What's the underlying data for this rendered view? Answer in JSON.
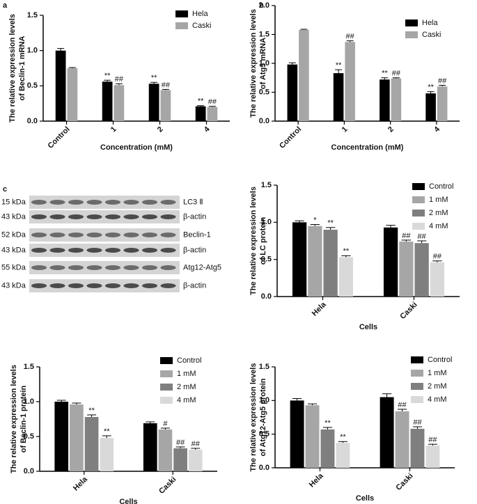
{
  "chart_data": [
    {
      "type": "bar",
      "panel_label": "a",
      "ylabel": [
        "The relative expression levels",
        "of Beclin-1 mRNA"
      ],
      "xlabel": "Concentration (mM)",
      "categories": [
        "Control",
        "1",
        "2",
        "4"
      ],
      "ylim": [
        0,
        1.5
      ],
      "yticks": [
        {
          "value": 0,
          "label": "0.0"
        },
        {
          "value": 0.5,
          "label": "0.5"
        },
        {
          "value": 1,
          "label": "1.0"
        },
        {
          "value": 1.5,
          "label": "1.5"
        }
      ],
      "legend": "upper right",
      "series": [
        {
          "name": "Hela",
          "color": "#000000",
          "values": [
            1.0,
            0.56,
            0.53,
            0.21
          ],
          "errors": [
            0.03,
            0.02,
            0.02,
            0.01
          ],
          "annotations": [
            null,
            "**",
            "**",
            "**"
          ]
        },
        {
          "name": "Caski",
          "color": "#a6a6a6",
          "values": [
            0.75,
            0.51,
            0.44,
            0.2
          ],
          "errors": [
            0.01,
            0.02,
            0.01,
            0.01
          ],
          "annotations": [
            null,
            "##",
            "##",
            "##"
          ]
        }
      ]
    },
    {
      "type": "bar",
      "panel_label": "b",
      "ylabel": [
        "The relative expression levels",
        "of Atg5 mRNA"
      ],
      "xlabel": "Concentration (mM)",
      "categories": [
        "Control",
        "1",
        "2",
        "4"
      ],
      "ylim": [
        0,
        2
      ],
      "yticks": [
        {
          "value": 0,
          "label": "0.0"
        },
        {
          "value": 0.5,
          "label": "0.5"
        },
        {
          "value": 1,
          "label": "1.0"
        },
        {
          "value": 1.5,
          "label": "1.5"
        },
        {
          "value": 2,
          "label": "2.0"
        }
      ],
      "legend": "upper right",
      "series": [
        {
          "name": "Hela",
          "color": "#000000",
          "values": [
            0.98,
            0.83,
            0.72,
            0.48
          ],
          "errors": [
            0.03,
            0.06,
            0.03,
            0.03
          ],
          "annotations": [
            null,
            "**",
            "**",
            "**"
          ]
        },
        {
          "name": "Caski",
          "color": "#a6a6a6",
          "values": [
            1.58,
            1.37,
            0.74,
            0.6
          ],
          "errors": [
            0.01,
            0.02,
            0.01,
            0.02
          ],
          "annotations": [
            null,
            "##",
            "##",
            "##"
          ]
        }
      ]
    },
    {
      "type": "bar",
      "ylabel": [
        "The relative expression levels",
        "of LC protein"
      ],
      "xlabel": "Cells",
      "categories": [
        "Hela",
        "Caski"
      ],
      "ylim": [
        0,
        1.5
      ],
      "yticks": [
        {
          "value": 0,
          "label": "0.0"
        },
        {
          "value": 0.5,
          "label": "0.5"
        },
        {
          "value": 1,
          "label": "1.0"
        },
        {
          "value": 1.5,
          "label": "1.5"
        }
      ],
      "legend": "upper right",
      "series": [
        {
          "name": "Control",
          "color": "#000000",
          "values": [
            1.0,
            0.93
          ],
          "errors": [
            0.02,
            0.03
          ],
          "annotations": [
            null,
            null
          ]
        },
        {
          "name": "1 mM",
          "color": "#a6a6a6",
          "values": [
            0.95,
            0.74
          ],
          "errors": [
            0.02,
            0.02
          ],
          "annotations": [
            "*",
            "##"
          ]
        },
        {
          "name": "2 mM",
          "color": "#7f7f7f",
          "values": [
            0.9,
            0.72
          ],
          "errors": [
            0.03,
            0.03
          ],
          "annotations": [
            "**",
            "##"
          ]
        },
        {
          "name": "4 mM",
          "color": "#d9d9d9",
          "values": [
            0.53,
            0.46
          ],
          "errors": [
            0.02,
            0.02
          ],
          "annotations": [
            "**",
            "##"
          ]
        }
      ]
    },
    {
      "type": "bar",
      "ylabel": [
        "The relative expression levels",
        "of Beclin-1 protein"
      ],
      "xlabel": "Cells",
      "categories": [
        "Hela",
        "Caski"
      ],
      "ylim": [
        0,
        1.5
      ],
      "yticks": [
        {
          "value": 0,
          "label": "0.0"
        },
        {
          "value": 0.5,
          "label": "0.5"
        },
        {
          "value": 1,
          "label": "1.0"
        },
        {
          "value": 1.5,
          "label": "1.5"
        }
      ],
      "legend": "upper right",
      "series": [
        {
          "name": "Control",
          "color": "#000000",
          "values": [
            1.0,
            0.69
          ],
          "errors": [
            0.02,
            0.02
          ],
          "annotations": [
            null,
            null
          ]
        },
        {
          "name": "1 mM",
          "color": "#a6a6a6",
          "values": [
            0.96,
            0.6
          ],
          "errors": [
            0.02,
            0.02
          ],
          "annotations": [
            null,
            "#"
          ]
        },
        {
          "name": "2 mM",
          "color": "#7f7f7f",
          "values": [
            0.78,
            0.33
          ],
          "errors": [
            0.03,
            0.02
          ],
          "annotations": [
            "**",
            "##"
          ]
        },
        {
          "name": "4 mM",
          "color": "#d9d9d9",
          "values": [
            0.48,
            0.31
          ],
          "errors": [
            0.03,
            0.02
          ],
          "annotations": [
            "**",
            "##"
          ]
        }
      ]
    },
    {
      "type": "bar",
      "ylabel": [
        "The relative expression levels",
        "of Atg12-Atg5 protein"
      ],
      "xlabel": "Cells",
      "categories": [
        "Hela",
        "Caski"
      ],
      "ylim": [
        0,
        1.5
      ],
      "yticks": [
        {
          "value": 0,
          "label": "0.0"
        },
        {
          "value": 0.5,
          "label": "0.5"
        },
        {
          "value": 1,
          "label": "1.0"
        },
        {
          "value": 1.5,
          "label": "1.5"
        }
      ],
      "legend": "upper right",
      "series": [
        {
          "name": "Control",
          "color": "#000000",
          "values": [
            1.0,
            1.05
          ],
          "errors": [
            0.03,
            0.05
          ],
          "annotations": [
            null,
            null
          ]
        },
        {
          "name": "1 mM",
          "color": "#a6a6a6",
          "values": [
            0.93,
            0.84
          ],
          "errors": [
            0.02,
            0.03
          ],
          "annotations": [
            null,
            "##"
          ]
        },
        {
          "name": "2 mM",
          "color": "#7f7f7f",
          "values": [
            0.57,
            0.58
          ],
          "errors": [
            0.03,
            0.03
          ],
          "annotations": [
            "**",
            "##"
          ]
        },
        {
          "name": "4 mM",
          "color": "#d9d9d9",
          "values": [
            0.37,
            0.33
          ],
          "errors": [
            0.02,
            0.02
          ],
          "annotations": [
            "**",
            "##"
          ]
        }
      ]
    }
  ],
  "blot": {
    "panel_label": "c",
    "rows": [
      {
        "size": "15 kDa",
        "label": "LC3 Ⅱ"
      },
      {
        "size": "43 kDa",
        "label": "β-actin"
      },
      {
        "size": "52 kDa",
        "label": "Beclin-1"
      },
      {
        "size": "43 kDa",
        "label": "β-actin"
      },
      {
        "size": "55 kDa",
        "label": "Atg12-Atg5"
      },
      {
        "size": "43 kDa",
        "label": "β-actin"
      }
    ]
  }
}
